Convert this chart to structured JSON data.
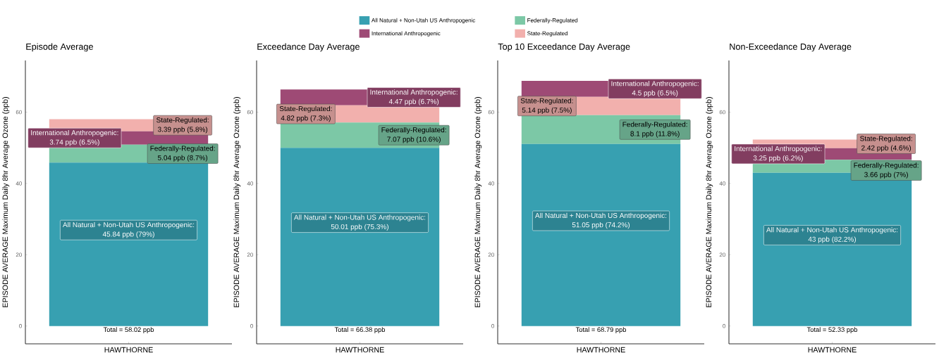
{
  "chart_data": [
    {
      "type": "bar",
      "stacked": true,
      "title": "Episode Average",
      "ylabel": "EPISODE AVERAGE Maximum Daily 8hr Average Ozone (ppb)",
      "categories": [
        "HAWTHORNE"
      ],
      "ylim": [
        -5,
        74.5
      ],
      "yticks": [
        0,
        20,
        40,
        60
      ],
      "legend": "top",
      "series": [
        {
          "name": "All Natural + Non-Utah US Anthropogenic",
          "color": "#37a0b1",
          "values": [
            45.84
          ],
          "value_labels": [
            "All Natural + Non-Utah US Anthropogenic: 45.84 ppb (79%)"
          ]
        },
        {
          "name": "Federally-Regulated",
          "color": "#7cc8a6",
          "values": [
            5.04
          ],
          "value_labels": [
            "Federally-Regulated: 5.04 ppb (8.7%)"
          ]
        },
        {
          "name": "International Anthropogenic",
          "color": "#9e4a75",
          "values": [
            3.74
          ],
          "value_labels": [
            "International Anthropogenic: 3.74 ppb (6.5%)"
          ]
        },
        {
          "name": "State-Regulated",
          "color": "#f2b0ad",
          "values": [
            3.39
          ],
          "value_labels": [
            "State-Regulated: 3.39 ppb (5.8%)"
          ]
        }
      ],
      "totals": [
        "Total = 58.02 ppb"
      ]
    },
    {
      "type": "bar",
      "stacked": true,
      "title": "Exceedance Day Average",
      "ylabel": "EPISODE AVERAGE Maximum Daily 8hr Average Ozone (ppb)",
      "categories": [
        "HAWTHORNE"
      ],
      "ylim": [
        -5,
        74.5
      ],
      "yticks": [
        0,
        20,
        40,
        60
      ],
      "series": [
        {
          "name": "All Natural + Non-Utah US Anthropogenic",
          "color": "#37a0b1",
          "values": [
            50.01
          ],
          "value_labels": [
            "All Natural + Non-Utah US Anthropogenic: 50.01 ppb (75.3%)"
          ]
        },
        {
          "name": "Federally-Regulated",
          "color": "#7cc8a6",
          "values": [
            7.07
          ],
          "value_labels": [
            "Federally-Regulated: 7.07 ppb (10.6%)"
          ]
        },
        {
          "name": "State-Regulated",
          "color": "#f2b0ad",
          "values": [
            4.82
          ],
          "value_labels": [
            "State-Regulated: 4.82 ppb (7.3%)"
          ]
        },
        {
          "name": "International Anthropogenic",
          "color": "#9e4a75",
          "values": [
            4.47
          ],
          "value_labels": [
            "International Anthropogenic: 4.47 ppb (6.7%)"
          ]
        }
      ],
      "totals": [
        "Total = 66.38 ppb"
      ]
    },
    {
      "type": "bar",
      "stacked": true,
      "title": "Top 10 Exceedance Day Average",
      "ylabel": "EPISODE AVERAGE Maximum Daily 8hr Average Ozone (ppb)",
      "categories": [
        "HAWTHORNE"
      ],
      "ylim": [
        -5,
        74.5
      ],
      "yticks": [
        0,
        20,
        40,
        60
      ],
      "series": [
        {
          "name": "All Natural + Non-Utah US Anthropogenic",
          "color": "#37a0b1",
          "values": [
            51.05
          ],
          "value_labels": [
            "All Natural + Non-Utah US Anthropogenic: 51.05 ppb (74.2%)"
          ]
        },
        {
          "name": "Federally-Regulated",
          "color": "#7cc8a6",
          "values": [
            8.1
          ],
          "value_labels": [
            "Federally-Regulated: 8.1 ppb (11.8%)"
          ]
        },
        {
          "name": "State-Regulated",
          "color": "#f2b0ad",
          "values": [
            5.14
          ],
          "value_labels": [
            "State-Regulated: 5.14 ppb (7.5%)"
          ]
        },
        {
          "name": "International Anthropogenic",
          "color": "#9e4a75",
          "values": [
            4.5
          ],
          "value_labels": [
            "International Anthropogenic: 4.5 ppb (6.5%)"
          ]
        }
      ],
      "totals": [
        "Total = 68.79 ppb"
      ]
    },
    {
      "type": "bar",
      "stacked": true,
      "title": "Non-Exceedance Day Average",
      "ylabel": "EPISODE AVERAGE Maximum Daily 8hr Average Ozone (ppb)",
      "categories": [
        "HAWTHORNE"
      ],
      "ylim": [
        -5,
        74.5
      ],
      "yticks": [
        0,
        20,
        40,
        60
      ],
      "series": [
        {
          "name": "All Natural + Non-Utah US Anthropogenic",
          "color": "#37a0b1",
          "values": [
            43
          ],
          "value_labels": [
            "All Natural + Non-Utah US Anthropogenic: 43 ppb (82.2%)"
          ]
        },
        {
          "name": "Federally-Regulated",
          "color": "#7cc8a6",
          "values": [
            3.66
          ],
          "value_labels": [
            "Federally-Regulated: 3.66 ppb (7%)"
          ]
        },
        {
          "name": "International Anthropogenic",
          "color": "#9e4a75",
          "values": [
            3.25
          ],
          "value_labels": [
            "International Anthropogenic: 3.25 ppb (6.2%)"
          ]
        },
        {
          "name": "State-Regulated",
          "color": "#f2b0ad",
          "values": [
            2.42
          ],
          "value_labels": [
            "State-Regulated: 2.42 ppb (4.6%)"
          ]
        }
      ],
      "totals": [
        "Total = 52.33 ppb"
      ]
    }
  ]
}
